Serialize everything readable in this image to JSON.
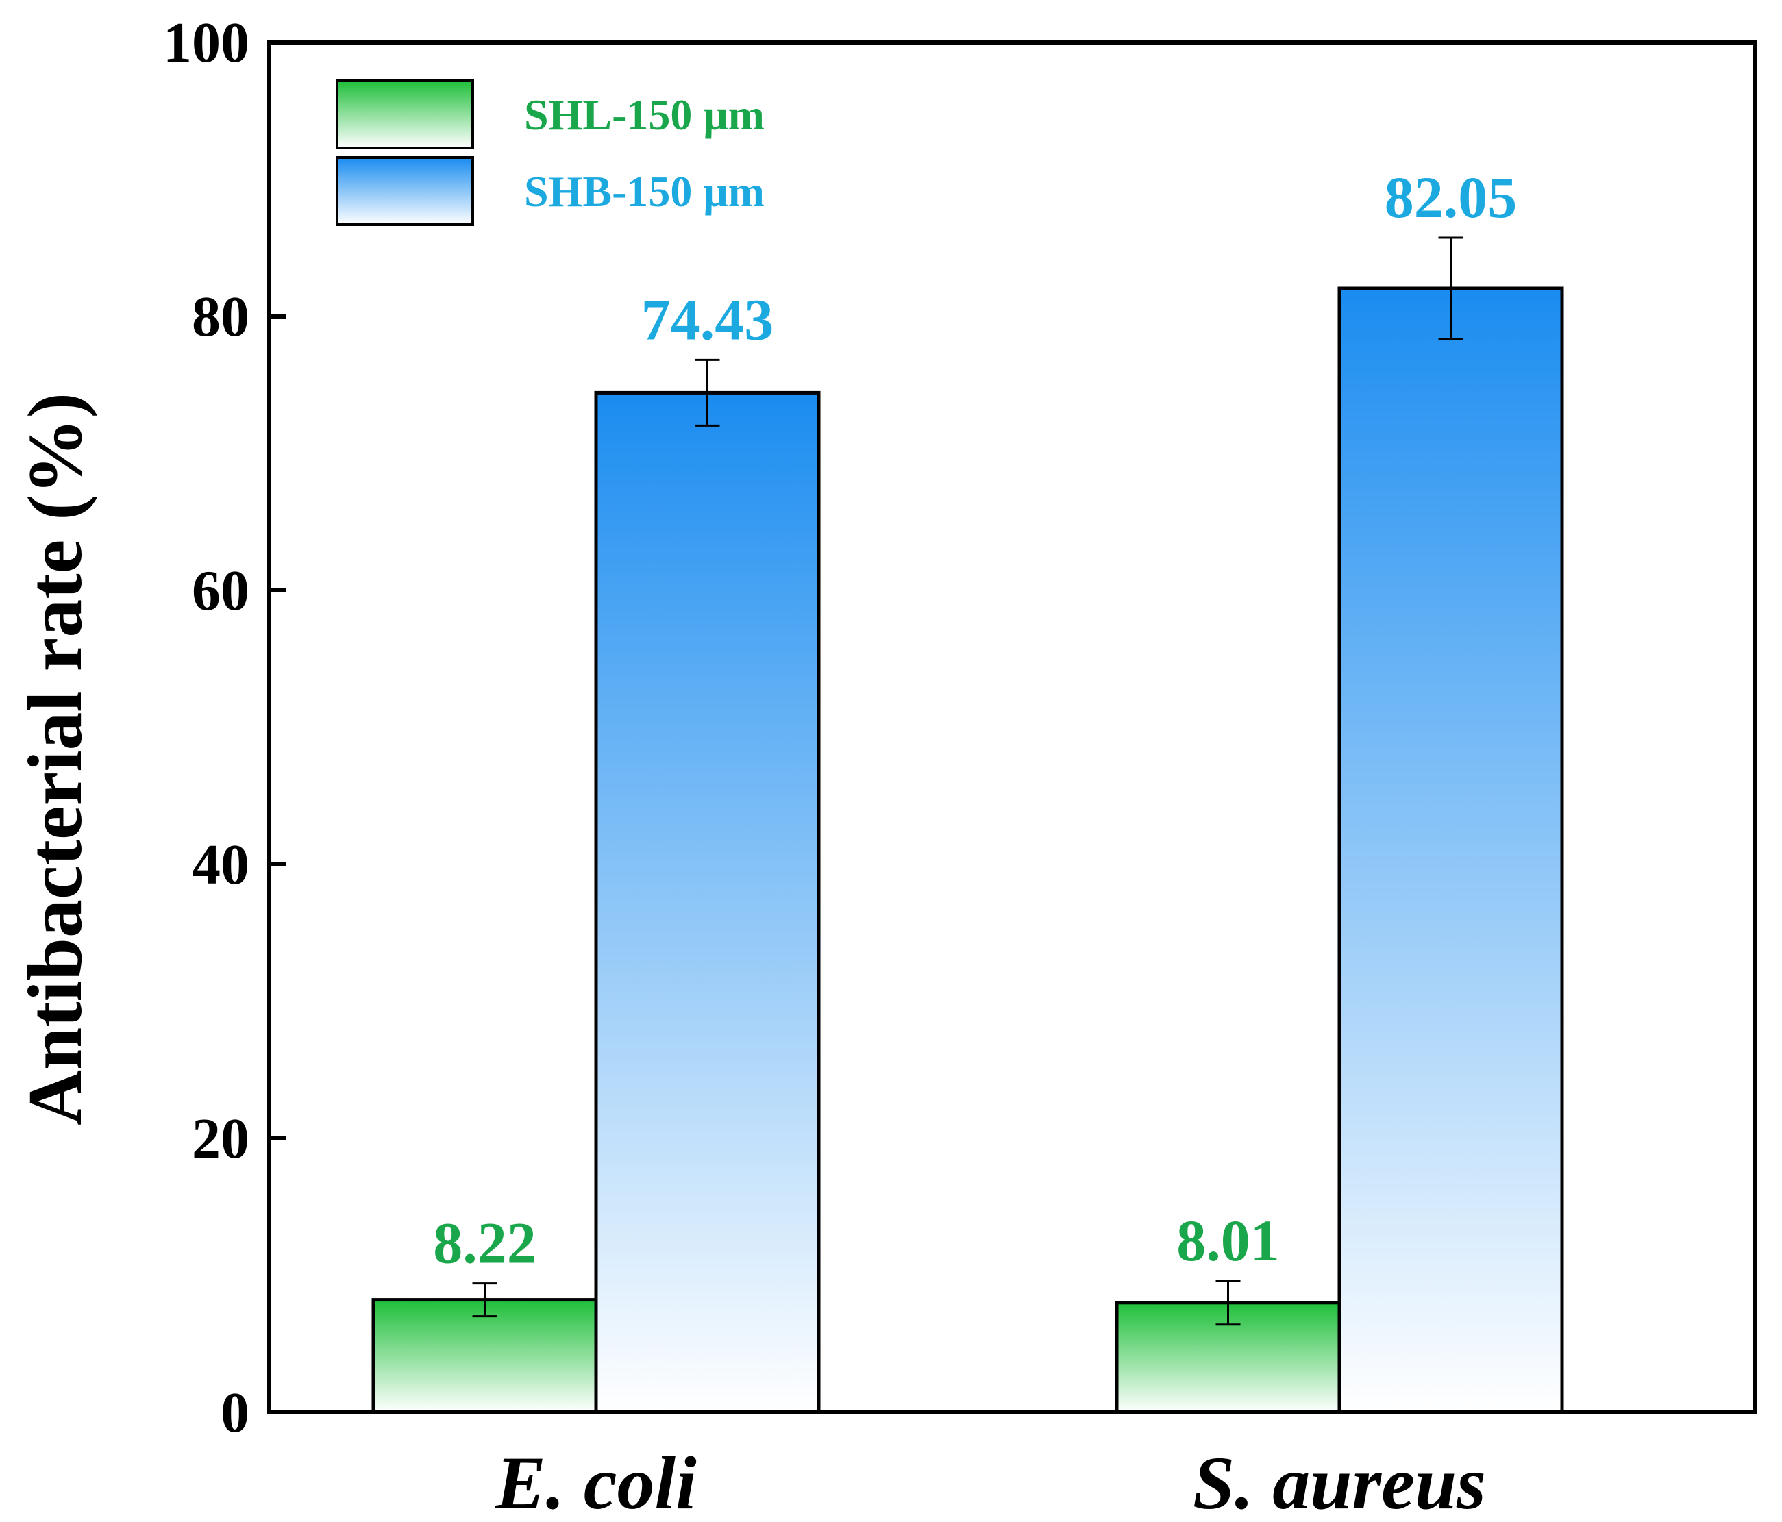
{
  "chart_data": {
    "type": "bar",
    "title": "",
    "xlabel": "",
    "ylabel": "Antibacterial rate (%)",
    "ylim": [
      0,
      100
    ],
    "yticks": [
      0,
      20,
      40,
      60,
      80,
      100
    ],
    "categories": [
      "E. coli",
      "S. aureus"
    ],
    "series": [
      {
        "name": "SHL-150 μm",
        "color": "#1fbf3a",
        "label_color": "#1aa64a",
        "values": [
          8.22,
          8.01
        ],
        "errors": [
          1.2,
          1.6
        ],
        "value_labels": [
          "8.22",
          "8.01"
        ]
      },
      {
        "name": "SHB-150 μm",
        "color": "#1a8cf0",
        "label_color": "#1ba9e0",
        "values": [
          74.43,
          82.05
        ],
        "errors": [
          2.4,
          3.7
        ],
        "value_labels": [
          "74.43",
          "82.05"
        ]
      }
    ],
    "legend": {
      "position": "top-left"
    }
  }
}
